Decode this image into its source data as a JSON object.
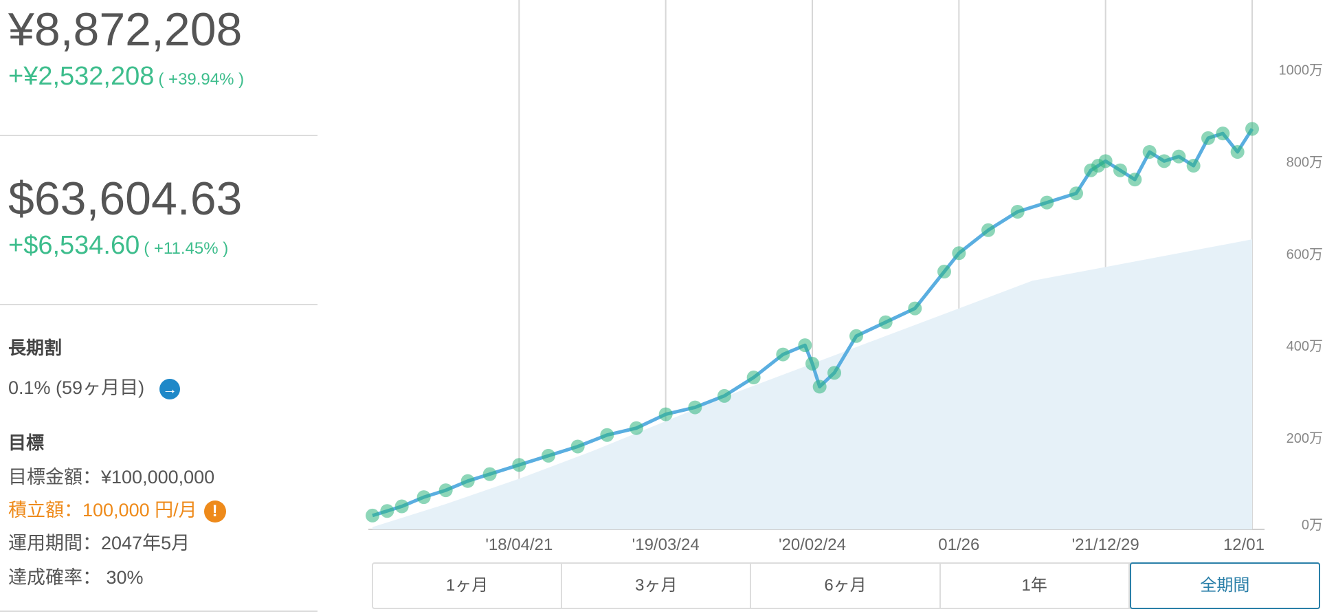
{
  "summary": {
    "jpy_total": "¥8,872,208",
    "jpy_gain": "+¥2,532,208",
    "jpy_gain_pct": "( +39.94% )",
    "usd_total": "$63,604.63",
    "usd_gain": "+$6,534.60",
    "usd_gain_pct": "( +11.45% )"
  },
  "long_term": {
    "heading": "長期割",
    "value": "0.1% (59ヶ月目)",
    "arrow_icon": "arrow-right-icon"
  },
  "goal": {
    "heading": "目標",
    "target_amount": "目標金額：¥100,000,000",
    "monthly_contribution": "積立額：100,000 円/月",
    "warning_icon": "!",
    "period": "運用期間：2047年5月",
    "probability": "達成確率： 30%"
  },
  "tabs": [
    {
      "label": "1ヶ月",
      "active": false
    },
    {
      "label": "3ヶ月",
      "active": false
    },
    {
      "label": "6ヶ月",
      "active": false
    },
    {
      "label": "1年",
      "active": false
    },
    {
      "label": "全期間",
      "active": true
    }
  ],
  "colors": {
    "gain": "#3dbd8c",
    "line": "#5aaee0",
    "dots": "#2fb57e",
    "area": "#e6f1f8",
    "accent": "#2a7fa8",
    "warning": "#ee8a1a"
  },
  "chart_data": {
    "type": "line",
    "title": "",
    "xlabel": "",
    "ylabel": "",
    "x_ticks": [
      "'18/04/21",
      "'19/03/24",
      "'20/02/24",
      "01/26",
      "'21/12/29",
      "12/01"
    ],
    "x_tick_positions": [
      1,
      2,
      3,
      4,
      5,
      6
    ],
    "xlim": [
      0,
      6
    ],
    "y_ticks": [
      "0万",
      "200万",
      "400万",
      "600万",
      "800万",
      "1000万"
    ],
    "y_tick_values": [
      0,
      200,
      400,
      600,
      800,
      1000
    ],
    "ylim": [
      0,
      1150
    ],
    "grid": "vertical",
    "series": [
      {
        "kind": "line+markers",
        "x": [
          0,
          0.1,
          0.2,
          0.35,
          0.5,
          0.65,
          0.8,
          1.0,
          1.2,
          1.4,
          1.6,
          1.8,
          2.0,
          2.2,
          2.4,
          2.6,
          2.8,
          2.95,
          3.0,
          3.05,
          3.15,
          3.3,
          3.5,
          3.7,
          3.9,
          4.0,
          4.2,
          4.4,
          4.6,
          4.8,
          4.9,
          4.95,
          5.0,
          5.1,
          5.2,
          5.3,
          5.4,
          5.5,
          5.6,
          5.7,
          5.8,
          5.9,
          6.0
        ],
        "y": [
          30,
          40,
          50,
          70,
          85,
          105,
          120,
          140,
          160,
          180,
          205,
          220,
          250,
          265,
          290,
          330,
          380,
          400,
          360,
          310,
          340,
          420,
          450,
          480,
          560,
          600,
          650,
          690,
          710,
          730,
          780,
          790,
          800,
          780,
          760,
          820,
          800,
          810,
          790,
          850,
          860,
          820,
          870
        ]
      },
      {
        "kind": "area",
        "x": [
          0,
          0.5,
          1.0,
          1.5,
          2.0,
          2.5,
          3.0,
          3.5,
          4.0,
          4.5,
          5.0,
          5.5,
          6.0
        ],
        "y": [
          5,
          55,
          110,
          170,
          235,
          300,
          360,
          420,
          480,
          540,
          570,
          600,
          630
        ]
      }
    ]
  }
}
